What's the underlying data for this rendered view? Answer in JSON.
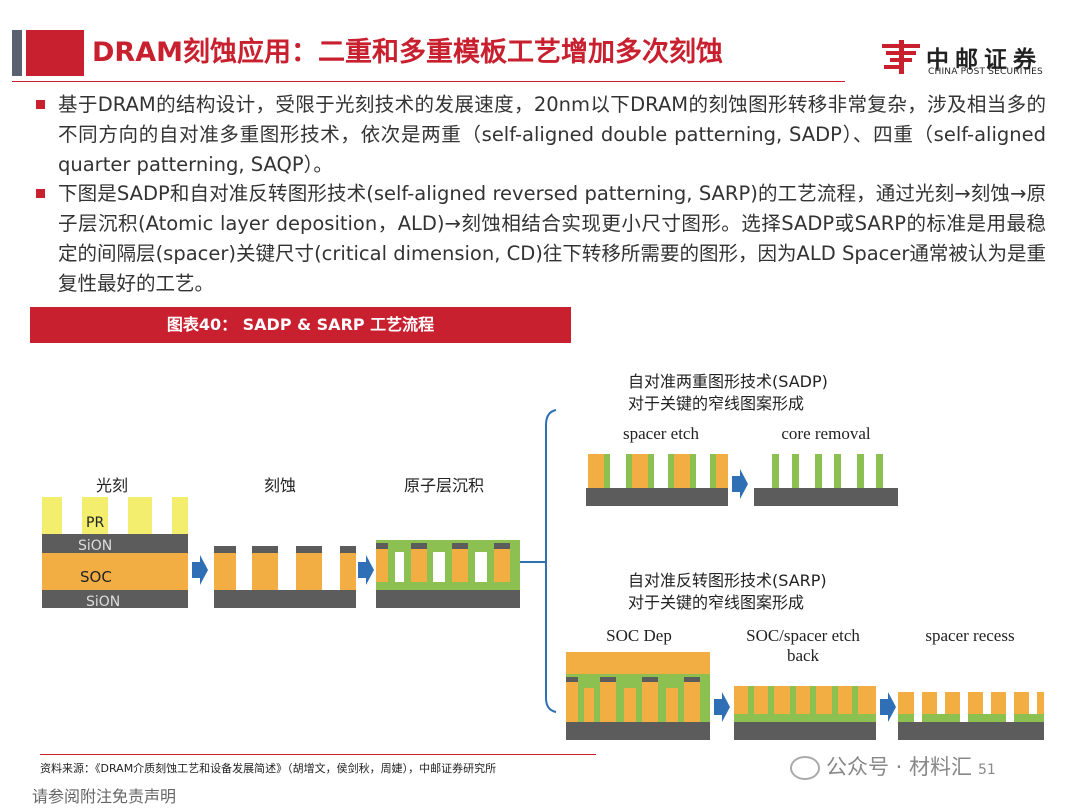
{
  "header": {
    "title": "DRAM刻蚀应用：二重和多重模板工艺增加多次刻蚀",
    "logo_cn": "中邮证券",
    "logo_en": "CHINA POST SECURITIES"
  },
  "bullets": [
    "基于DRAM的结构设计，受限于光刻技术的发展速度，20nm以下DRAM的刻蚀图形转移非常复杂，涉及相当多的不同方向的自对准多重图形技术，依次是两重（self-aligned double patterning, SADP）、四重（self-aligned quarter patterning, SAQP）。",
    "下图是SADP和自对准反转图形技术(self-aligned reversed patterning, SARP)的工艺流程，通过光刻→刻蚀→原子层沉积(Atomic layer deposition，ALD)→刻蚀相结合实现更小尺寸图形。选择SADP或SARP的标准是用最稳定的间隔层(spacer)关键尺寸(critical dimension, CD)往下转移所需要的图形，因为ALD Spacer通常被认为是重复性最好的工艺。"
  ],
  "figure": {
    "title": "图表40： SADP & SARP 工艺流程",
    "steps": [
      "光刻",
      "刻蚀",
      "原子层沉积"
    ],
    "layers": [
      "PR",
      "SiON",
      "SOC",
      "SiON"
    ],
    "sadp": {
      "label_line1": "自对准两重图形技术(SADP)",
      "label_line2": "对于关键的窄线图案形成",
      "steps": [
        "spacer etch",
        "core removal"
      ]
    },
    "sarp": {
      "label_line1": "自对准反转图形技术(SARP)",
      "label_line2": "对于关键的窄线图案形成",
      "steps": [
        "SOC Dep",
        "SOC/spacer etch back",
        "spacer recess"
      ]
    }
  },
  "footer": {
    "source": "资料来源：《DRAM介质刻蚀工艺和设备发展简述》（胡增文，侯剑秋，周婕），中邮证券研究所",
    "disclaimer": "请参阅附注免责声明",
    "watermark": "公众号 · 材料汇",
    "page_number": "51"
  },
  "colors": {
    "brand_red": "#c8202f",
    "core_orange": "#f3ae43",
    "spacer_green": "#8cc152",
    "photoresist_yellow": "#f3ee6d",
    "base_gray": "#5c5c5c",
    "arrow_blue": "#2f6fb5"
  }
}
